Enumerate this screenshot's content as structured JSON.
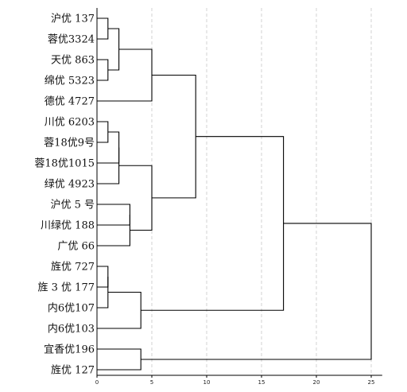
{
  "chart_data": {
    "type": "dendrogram",
    "title": "",
    "xlabel": "",
    "ylabel": "",
    "xlim": [
      0,
      26
    ],
    "x_ticks": [
      0,
      5,
      10,
      15,
      20,
      25
    ],
    "grid": "vertical dashed at ticks",
    "leaves": [
      "沪优 137",
      "蓉优3324",
      "天优 863",
      "绵优 5323",
      "德优 4727",
      "川优 6203",
      "蓉18优9号",
      "蓉18优1015",
      "绿优 4923",
      "沪优 5 号",
      "川绿优 188",
      "广优 66",
      "旌优 727",
      "旌 3 优 177",
      "内6优107",
      "内6优103",
      "宜香优196",
      "旌优 127"
    ],
    "merges": [
      {
        "id": "n1",
        "left": "L0",
        "right": "L1",
        "height": 1.0
      },
      {
        "id": "n2",
        "left": "L2",
        "right": "L3",
        "height": 1.0
      },
      {
        "id": "n3",
        "left": "n1",
        "right": "n2",
        "height": 2.0
      },
      {
        "id": "n4",
        "left": "n3",
        "right": "L4",
        "height": 5.0
      },
      {
        "id": "n5",
        "left": "L5",
        "right": "L6",
        "height": 1.0
      },
      {
        "id": "n6",
        "left": "n5",
        "right": "L7",
        "height": 2.0
      },
      {
        "id": "n7",
        "left": "n6",
        "right": "L8",
        "height": 2.0
      },
      {
        "id": "n8",
        "left": "L9",
        "right": "L10",
        "height": 3.0
      },
      {
        "id": "n9",
        "left": "n8",
        "right": "L11",
        "height": 3.0
      },
      {
        "id": "n10",
        "left": "n7",
        "right": "n9",
        "height": 5.0
      },
      {
        "id": "n11",
        "left": "n4",
        "right": "n10",
        "height": 9.0
      },
      {
        "id": "n12",
        "left": "L12",
        "right": "L13",
        "height": 1.0
      },
      {
        "id": "n13",
        "left": "n12",
        "right": "L14",
        "height": 1.0
      },
      {
        "id": "n14",
        "left": "n13",
        "right": "L15",
        "height": 4.0
      },
      {
        "id": "n15",
        "left": "n11",
        "right": "n14",
        "height": 17.0
      },
      {
        "id": "n16",
        "left": "L16",
        "right": "L17",
        "height": 4.0
      },
      {
        "id": "n17",
        "left": "n15",
        "right": "n16",
        "height": 25.0
      }
    ]
  }
}
